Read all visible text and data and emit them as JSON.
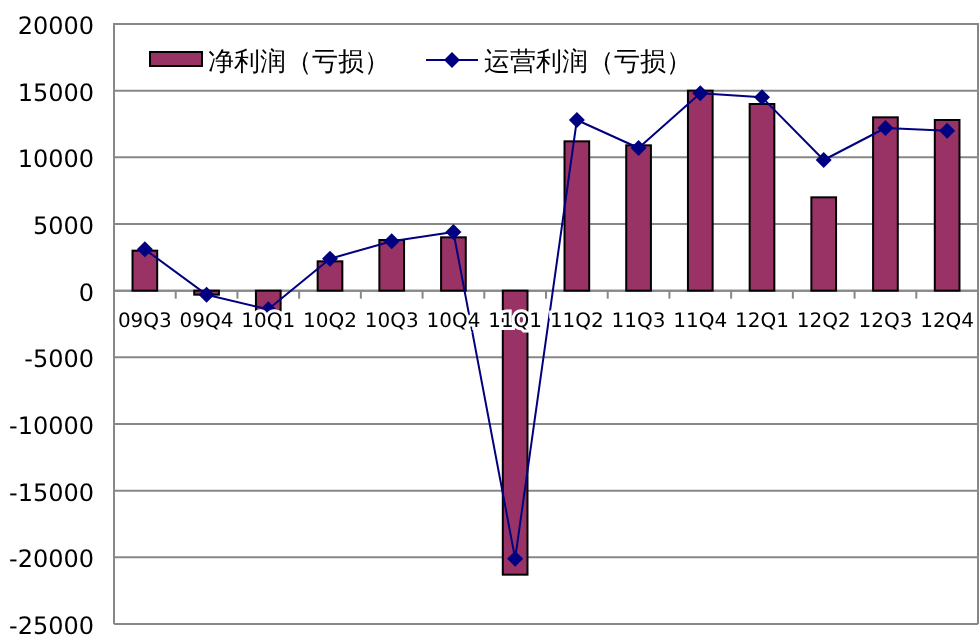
{
  "chart_data": {
    "type": "bar",
    "categories": [
      "09Q3",
      "09Q4",
      "10Q1",
      "10Q2",
      "10Q3",
      "10Q4",
      "11Q1",
      "11Q2",
      "11Q3",
      "11Q4",
      "12Q1",
      "12Q2",
      "12Q3",
      "12Q4"
    ],
    "series": [
      {
        "name": "净利润（亏损）",
        "color": "#993366",
        "values": [
          3000,
          -300,
          -1500,
          2200,
          3800,
          4000,
          -21300,
          11200,
          10900,
          15000,
          14000,
          7000,
          13000,
          12800
        ]
      },
      {
        "name": "运营利润（亏损）",
        "type": "line",
        "color": "#000080",
        "values": [
          3100,
          -300,
          -1400,
          2400,
          3700,
          4400,
          -20100,
          12800,
          10700,
          14800,
          14500,
          9800,
          12200,
          12000
        ]
      }
    ],
    "ylim": [
      -25000,
      20000
    ],
    "yticks": [
      -25000,
      -20000,
      -15000,
      -10000,
      -5000,
      0,
      5000,
      10000,
      15000,
      20000
    ],
    "grid": "y",
    "legend": "top left",
    "marker": "diamond"
  }
}
